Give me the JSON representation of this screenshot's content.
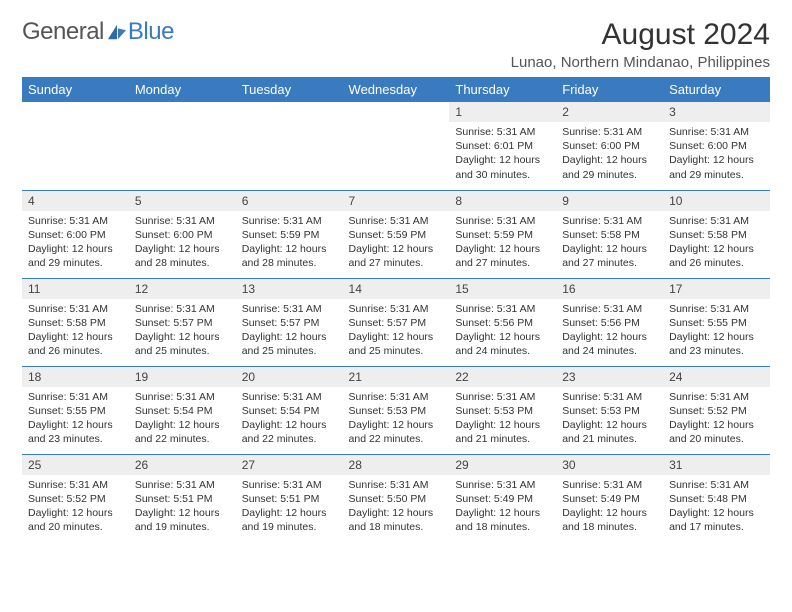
{
  "logo": {
    "general": "General",
    "blue": "Blue"
  },
  "title": "August 2024",
  "location": "Lunao, Northern Mindanao, Philippines",
  "colors": {
    "accent": "#3a7bbf",
    "grey": "#eeeeee"
  },
  "columns": [
    "Sunday",
    "Monday",
    "Tuesday",
    "Wednesday",
    "Thursday",
    "Friday",
    "Saturday"
  ],
  "weeks": [
    [
      null,
      null,
      null,
      null,
      {
        "n": "1",
        "sr": "5:31 AM",
        "ss": "6:01 PM",
        "dl": "12 hours and 30 minutes."
      },
      {
        "n": "2",
        "sr": "5:31 AM",
        "ss": "6:00 PM",
        "dl": "12 hours and 29 minutes."
      },
      {
        "n": "3",
        "sr": "5:31 AM",
        "ss": "6:00 PM",
        "dl": "12 hours and 29 minutes."
      }
    ],
    [
      {
        "n": "4",
        "sr": "5:31 AM",
        "ss": "6:00 PM",
        "dl": "12 hours and 29 minutes."
      },
      {
        "n": "5",
        "sr": "5:31 AM",
        "ss": "6:00 PM",
        "dl": "12 hours and 28 minutes."
      },
      {
        "n": "6",
        "sr": "5:31 AM",
        "ss": "5:59 PM",
        "dl": "12 hours and 28 minutes."
      },
      {
        "n": "7",
        "sr": "5:31 AM",
        "ss": "5:59 PM",
        "dl": "12 hours and 27 minutes."
      },
      {
        "n": "8",
        "sr": "5:31 AM",
        "ss": "5:59 PM",
        "dl": "12 hours and 27 minutes."
      },
      {
        "n": "9",
        "sr": "5:31 AM",
        "ss": "5:58 PM",
        "dl": "12 hours and 27 minutes."
      },
      {
        "n": "10",
        "sr": "5:31 AM",
        "ss": "5:58 PM",
        "dl": "12 hours and 26 minutes."
      }
    ],
    [
      {
        "n": "11",
        "sr": "5:31 AM",
        "ss": "5:58 PM",
        "dl": "12 hours and 26 minutes."
      },
      {
        "n": "12",
        "sr": "5:31 AM",
        "ss": "5:57 PM",
        "dl": "12 hours and 25 minutes."
      },
      {
        "n": "13",
        "sr": "5:31 AM",
        "ss": "5:57 PM",
        "dl": "12 hours and 25 minutes."
      },
      {
        "n": "14",
        "sr": "5:31 AM",
        "ss": "5:57 PM",
        "dl": "12 hours and 25 minutes."
      },
      {
        "n": "15",
        "sr": "5:31 AM",
        "ss": "5:56 PM",
        "dl": "12 hours and 24 minutes."
      },
      {
        "n": "16",
        "sr": "5:31 AM",
        "ss": "5:56 PM",
        "dl": "12 hours and 24 minutes."
      },
      {
        "n": "17",
        "sr": "5:31 AM",
        "ss": "5:55 PM",
        "dl": "12 hours and 23 minutes."
      }
    ],
    [
      {
        "n": "18",
        "sr": "5:31 AM",
        "ss": "5:55 PM",
        "dl": "12 hours and 23 minutes."
      },
      {
        "n": "19",
        "sr": "5:31 AM",
        "ss": "5:54 PM",
        "dl": "12 hours and 22 minutes."
      },
      {
        "n": "20",
        "sr": "5:31 AM",
        "ss": "5:54 PM",
        "dl": "12 hours and 22 minutes."
      },
      {
        "n": "21",
        "sr": "5:31 AM",
        "ss": "5:53 PM",
        "dl": "12 hours and 22 minutes."
      },
      {
        "n": "22",
        "sr": "5:31 AM",
        "ss": "5:53 PM",
        "dl": "12 hours and 21 minutes."
      },
      {
        "n": "23",
        "sr": "5:31 AM",
        "ss": "5:53 PM",
        "dl": "12 hours and 21 minutes."
      },
      {
        "n": "24",
        "sr": "5:31 AM",
        "ss": "5:52 PM",
        "dl": "12 hours and 20 minutes."
      }
    ],
    [
      {
        "n": "25",
        "sr": "5:31 AM",
        "ss": "5:52 PM",
        "dl": "12 hours and 20 minutes."
      },
      {
        "n": "26",
        "sr": "5:31 AM",
        "ss": "5:51 PM",
        "dl": "12 hours and 19 minutes."
      },
      {
        "n": "27",
        "sr": "5:31 AM",
        "ss": "5:51 PM",
        "dl": "12 hours and 19 minutes."
      },
      {
        "n": "28",
        "sr": "5:31 AM",
        "ss": "5:50 PM",
        "dl": "12 hours and 18 minutes."
      },
      {
        "n": "29",
        "sr": "5:31 AM",
        "ss": "5:49 PM",
        "dl": "12 hours and 18 minutes."
      },
      {
        "n": "30",
        "sr": "5:31 AM",
        "ss": "5:49 PM",
        "dl": "12 hours and 18 minutes."
      },
      {
        "n": "31",
        "sr": "5:31 AM",
        "ss": "5:48 PM",
        "dl": "12 hours and 17 minutes."
      }
    ]
  ],
  "labels": {
    "sunrise": "Sunrise:",
    "sunset": "Sunset:",
    "daylight": "Daylight:"
  }
}
